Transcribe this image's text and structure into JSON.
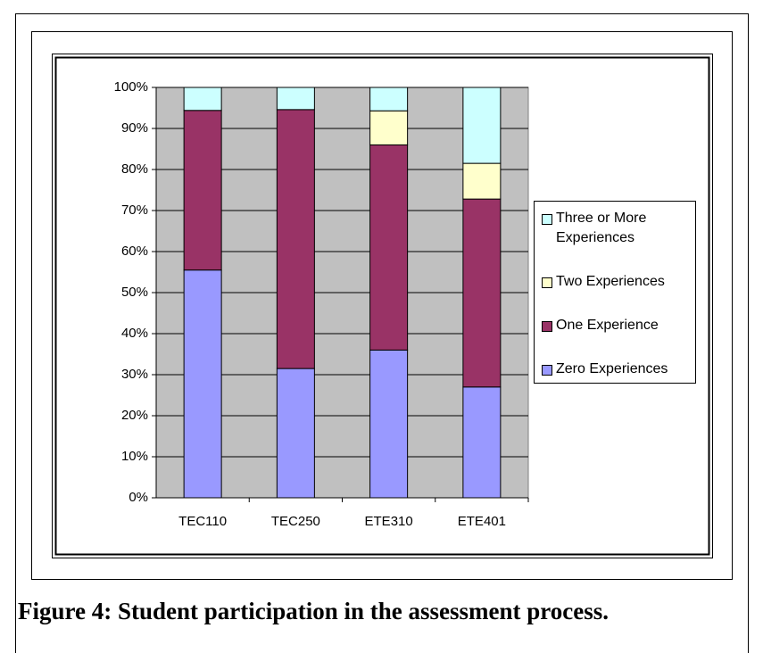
{
  "chart_data": {
    "type": "stacked_bar",
    "caption": "Figure 4:  Student participation in the assessment process.",
    "categories": [
      "TEC110",
      "TEC250",
      "ETE310",
      "ETE401"
    ],
    "series": [
      {
        "name": "Zero Experiences",
        "color": "#9999ff",
        "values": [
          55.5,
          31.5,
          36,
          27
        ]
      },
      {
        "name": "One Experience",
        "color": "#993366",
        "values": [
          38.9,
          63.1,
          50,
          45.8
        ]
      },
      {
        "name": "Two Experiences",
        "color": "#ffffcc",
        "values": [
          0,
          0,
          8.3,
          8.7
        ]
      },
      {
        "name": "Three or More Experiences",
        "color": "#ccffff",
        "values": [
          5.6,
          5.4,
          5.7,
          18.5
        ]
      }
    ],
    "ylim": [
      0,
      100
    ],
    "yticks": [
      {
        "value": 0,
        "label": "0%"
      },
      {
        "value": 10,
        "label": "10%"
      },
      {
        "value": 20,
        "label": "20%"
      },
      {
        "value": 30,
        "label": "30%"
      },
      {
        "value": 40,
        "label": "40%"
      },
      {
        "value": 50,
        "label": "50%"
      },
      {
        "value": 60,
        "label": "60%"
      },
      {
        "value": 70,
        "label": "70%"
      },
      {
        "value": 80,
        "label": "80%"
      },
      {
        "value": 90,
        "label": "90%"
      },
      {
        "value": 100,
        "label": "100%"
      }
    ],
    "grid": true,
    "plot_background": "#c0c0c0",
    "legend": "right"
  }
}
